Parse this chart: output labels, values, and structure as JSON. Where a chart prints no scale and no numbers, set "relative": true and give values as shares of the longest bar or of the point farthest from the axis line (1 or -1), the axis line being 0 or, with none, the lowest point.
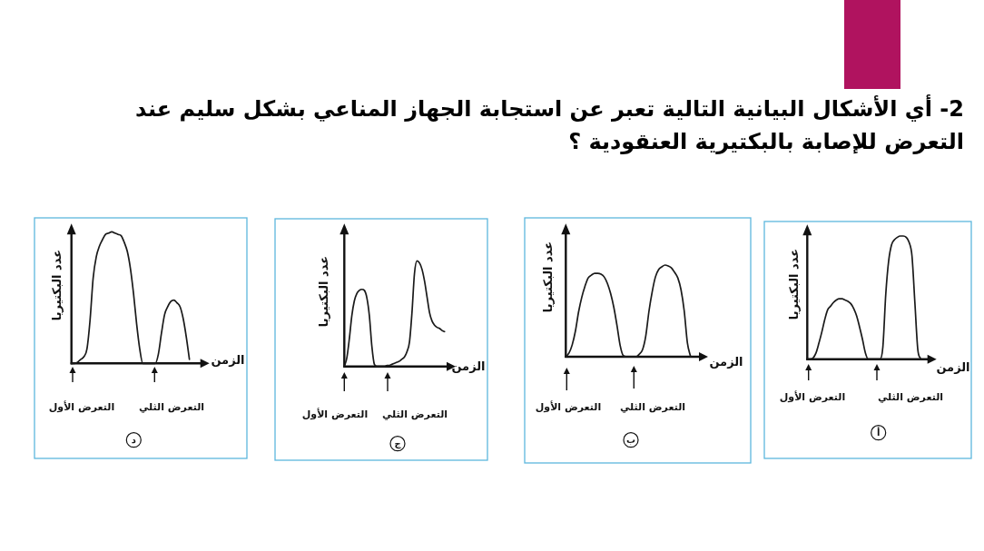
{
  "chart_data": [
    {
      "type": "other",
      "title": "2- أي الأشكال البيانية التالية تعبر عن استجابة الجهاز المناعي بشكل سليم عند التعرض للإصابة بالبكتيرية العنقودية ؟"
    },
    {
      "type": "line",
      "relative": true,
      "xlabel": "الزمن",
      "ylabel": "عدد البكتيريا",
      "color": "#1a1a1a",
      "categories": [
        null,
        null,
        null,
        null,
        null,
        null,
        null,
        null,
        null,
        null,
        null,
        null,
        null,
        null,
        null,
        null,
        null,
        null,
        null,
        null,
        null,
        null,
        null,
        null,
        null,
        null,
        null,
        null,
        null,
        null,
        null,
        null,
        null,
        null,
        null,
        null,
        null,
        null,
        null,
        null,
        null
      ],
      "values": [
        0,
        0,
        0.01,
        0.05,
        0.13,
        0.22,
        0.32,
        0.4,
        0.43,
        0.46,
        0.48,
        0.49,
        0.49,
        0.48,
        0.47,
        0.45,
        0.41,
        0.35,
        0.26,
        0.16,
        0.05,
        0,
        0,
        0,
        0,
        0,
        0.1,
        0.53,
        0.8,
        0.93,
        0.97,
        0.99,
        1,
        1,
        0.99,
        0.95,
        0.84,
        0.46,
        0.08,
        0,
        null
      ],
      "annotations": [
        "التعرض الأول",
        "التعرض الثلي",
        "أ"
      ]
    },
    {
      "type": "line",
      "relative": true,
      "xlabel": "الزمن",
      "ylabel": "عدد البكتيريا",
      "color": "#1a1a1a",
      "categories": [
        null,
        null,
        null,
        null,
        null,
        null,
        null,
        null,
        null,
        null,
        null,
        null,
        null,
        null,
        null,
        null,
        null,
        null,
        null,
        null,
        null,
        null,
        null,
        null,
        null,
        null,
        null,
        null,
        null,
        null,
        null,
        null,
        null,
        null,
        null,
        null,
        null,
        null,
        null,
        null,
        null
      ],
      "values": [
        0,
        0.04,
        0.13,
        0.28,
        0.49,
        0.65,
        0.77,
        0.86,
        0.89,
        0.91,
        0.91,
        0.9,
        0.87,
        0.8,
        0.69,
        0.54,
        0.34,
        0.12,
        0.01,
        0,
        0,
        0,
        0,
        0.03,
        0.08,
        0.23,
        0.5,
        0.71,
        0.87,
        0.95,
        0.98,
        1,
        0.99,
        0.97,
        0.92,
        0.86,
        0.73,
        0.5,
        0.15,
        0,
        null
      ],
      "annotations": [
        "التعرض الأول",
        "التعرض الثلي",
        "ب"
      ]
    },
    {
      "type": "line",
      "relative": true,
      "xlabel": "الزمن",
      "ylabel": "عدد البكتيريا",
      "color": "#1a1a1a",
      "categories": [
        null,
        null,
        null,
        null,
        null,
        null,
        null,
        null,
        null,
        null,
        null,
        null,
        null,
        null,
        null,
        null,
        null,
        null,
        null,
        null,
        null,
        null,
        null,
        null,
        null,
        null,
        null,
        null,
        null,
        null,
        null,
        null,
        null,
        null,
        null,
        null,
        null,
        null,
        null,
        null,
        null
      ],
      "values": [
        0,
        0.08,
        0.26,
        0.48,
        0.62,
        0.69,
        0.72,
        0.73,
        0.72,
        0.65,
        0.48,
        0.19,
        0.02,
        0,
        0,
        0,
        0,
        0.01,
        0.01,
        0.02,
        0.03,
        0.04,
        0.05,
        0.07,
        0.09,
        0.14,
        0.23,
        0.51,
        0.88,
        1,
        0.98,
        0.92,
        0.81,
        0.66,
        0.51,
        0.43,
        0.39,
        0.37,
        0.36,
        0.34,
        0.33
      ],
      "annotations": [
        "التعرض الأول",
        "التعرض الثلي",
        "ج"
      ]
    },
    {
      "type": "line",
      "relative": true,
      "xlabel": "الزمن",
      "ylabel": "عدد البكتيريا",
      "color": "#1a1a1a",
      "categories": [
        null,
        null,
        null,
        null,
        null,
        null,
        null,
        null,
        null,
        null,
        null,
        null,
        null,
        null,
        null,
        null,
        null,
        null,
        null,
        null,
        null,
        null,
        null,
        null,
        null,
        null,
        null,
        null,
        null,
        null,
        null,
        null,
        null,
        null,
        null,
        null,
        null,
        null,
        null,
        null,
        null
      ],
      "values": [
        0,
        0,
        0.01,
        0.03,
        0.05,
        0.11,
        0.33,
        0.65,
        0.81,
        0.89,
        0.94,
        0.98,
        0.99,
        1,
        0.99,
        0.98,
        0.97,
        0.92,
        0.85,
        0.72,
        0.53,
        0.3,
        0.11,
        0,
        0,
        0,
        0,
        0,
        0.07,
        0.23,
        0.37,
        0.43,
        0.47,
        0.48,
        0.46,
        0.43,
        0.34,
        0.2,
        0.03,
        null,
        null
      ],
      "annotations": [
        "التعرض الأول",
        "التعرض الثلي",
        "د"
      ]
    }
  ]
}
